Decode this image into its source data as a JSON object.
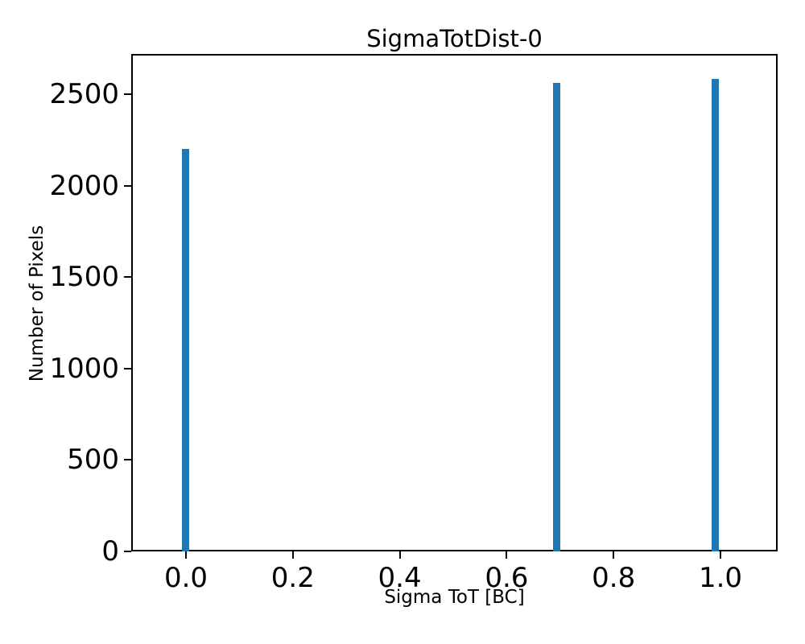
{
  "chart_data": {
    "type": "bar",
    "title": "SigmaTotDist-0",
    "xlabel": "Sigma ToT [BC]",
    "ylabel": "Number of Pixels",
    "bars": [
      {
        "x": 0.0,
        "value": 2200
      },
      {
        "x": 0.694,
        "value": 2560
      },
      {
        "x": 0.99,
        "value": 2585
      }
    ],
    "bar_color": "#1f77b4",
    "xticks": [
      0.0,
      0.2,
      0.4,
      0.6,
      0.8,
      1.0
    ],
    "xtick_labels": [
      "0.0",
      "0.2",
      "0.4",
      "0.6",
      "0.8",
      "1.0"
    ],
    "yticks": [
      0,
      500,
      1000,
      1500,
      2000,
      2500
    ],
    "ytick_labels": [
      "0",
      "500",
      "1000",
      "1500",
      "2000",
      "2500"
    ],
    "xlim": [
      -0.1024,
      1.1069
    ],
    "ylim": [
      0,
      2720
    ],
    "grid": false,
    "legend": null,
    "spine_color": "#000000",
    "text_color": "#000000"
  }
}
